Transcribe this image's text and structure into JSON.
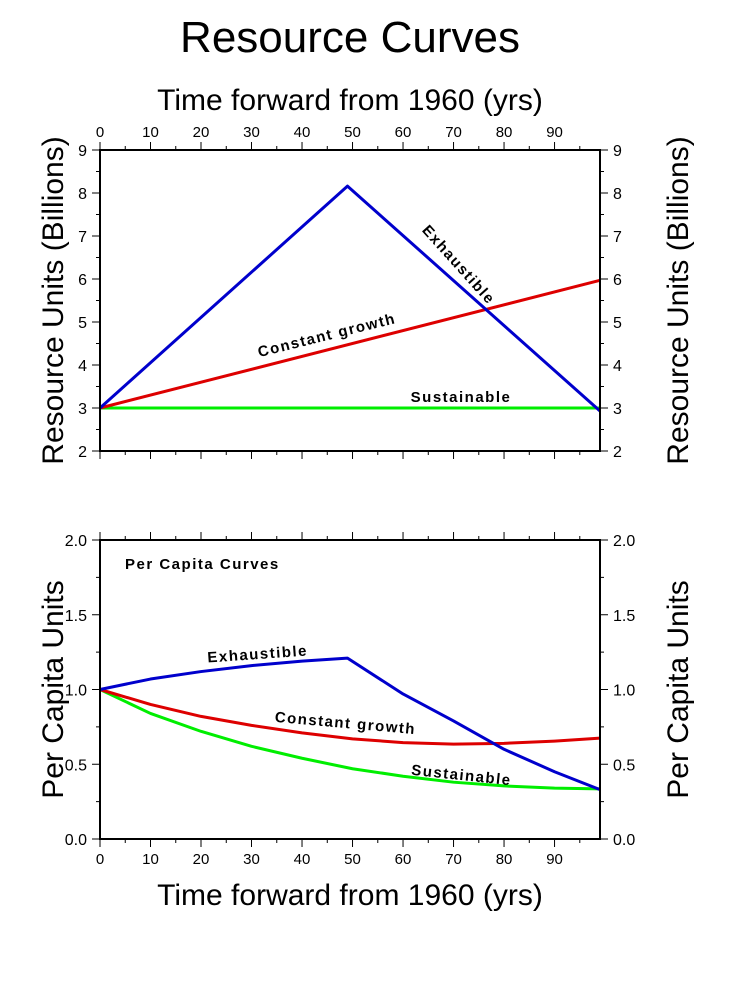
{
  "chart_data": [
    {
      "type": "line",
      "title": "Resource Curves",
      "xlabel": "Time forward from 1960 (yrs)",
      "ylabel": "Resource Units (Billions)",
      "xlim": [
        0,
        99
      ],
      "ylim": [
        2,
        9
      ],
      "xticks": [
        "0",
        "10",
        "20",
        "30",
        "40",
        "50",
        "60",
        "70",
        "80",
        "90"
      ],
      "yticks": [
        "2",
        "3",
        "4",
        "5",
        "6",
        "7",
        "8",
        "9"
      ],
      "grid": false,
      "series": [
        {
          "name": "Exhaustible",
          "color": "#0000cc",
          "x": [
            0,
            49,
            99
          ],
          "y": [
            3.0,
            8.16,
            2.93
          ]
        },
        {
          "name": "Constant growth",
          "color": "#dd0000",
          "x": [
            0,
            99
          ],
          "y": [
            3.0,
            5.97
          ]
        },
        {
          "name": "Sustainable",
          "color": "#00ee00",
          "x": [
            0,
            99
          ],
          "y": [
            3.0,
            3.0
          ]
        }
      ]
    },
    {
      "type": "line",
      "annotation": "Per Capita Curves",
      "xlabel": "Time forward from 1960 (yrs)",
      "ylabel": "Per Capita Units",
      "xlim": [
        0,
        99
      ],
      "ylim": [
        0.0,
        2.0
      ],
      "xticks": [
        "0",
        "10",
        "20",
        "30",
        "40",
        "50",
        "60",
        "70",
        "80",
        "90"
      ],
      "yticks": [
        "0.0",
        "0.5",
        "1.0",
        "1.5",
        "2.0"
      ],
      "grid": false,
      "series": [
        {
          "name": "Exhaustible",
          "color": "#0000cc",
          "x": [
            0,
            10,
            20,
            30,
            40,
            49,
            60,
            70,
            80,
            90,
            99
          ],
          "y": [
            1.0,
            1.07,
            1.12,
            1.16,
            1.19,
            1.21,
            0.97,
            0.79,
            0.6,
            0.45,
            0.33
          ]
        },
        {
          "name": "Constant growth",
          "color": "#dd0000",
          "x": [
            0,
            10,
            20,
            30,
            40,
            50,
            60,
            70,
            80,
            90,
            99
          ],
          "y": [
            1.0,
            0.9,
            0.82,
            0.76,
            0.71,
            0.67,
            0.645,
            0.635,
            0.64,
            0.655,
            0.675
          ]
        },
        {
          "name": "Sustainable",
          "color": "#00ee00",
          "x": [
            0,
            10,
            20,
            30,
            40,
            50,
            60,
            70,
            80,
            90,
            99
          ],
          "y": [
            1.0,
            0.84,
            0.72,
            0.62,
            0.54,
            0.47,
            0.42,
            0.38,
            0.355,
            0.34,
            0.335
          ]
        }
      ]
    }
  ]
}
